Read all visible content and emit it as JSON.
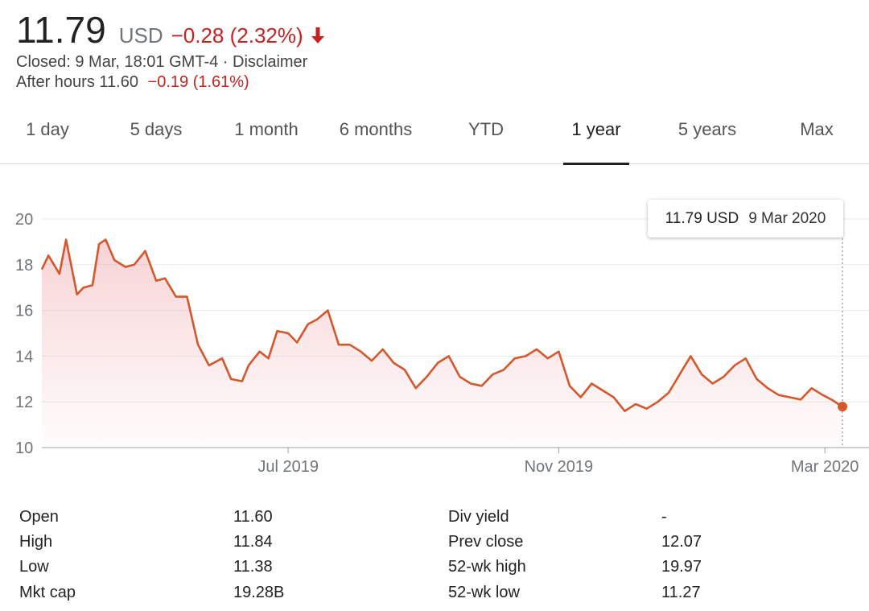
{
  "quote": {
    "price": "11.79",
    "currency": "USD",
    "change": "−0.28 (2.32%)",
    "change_color": "#c5221f",
    "closed_text": "Closed: 9 Mar, 18:01 GMT-4 · ",
    "disclaimer": "Disclaimer",
    "after_hours_text": "After hours 11.60",
    "after_hours_change": "−0.19 (1.61%)"
  },
  "tabs": [
    {
      "label": "1 day",
      "active": false
    },
    {
      "label": "5 days",
      "active": false
    },
    {
      "label": "1 month",
      "active": false
    },
    {
      "label": "6 months",
      "active": false
    },
    {
      "label": "YTD",
      "active": false
    },
    {
      "label": "1 year",
      "active": true
    },
    {
      "label": "5 years",
      "active": false
    },
    {
      "label": "Max",
      "active": false
    }
  ],
  "tooltip": {
    "value": "11.79 USD",
    "date": "9 Mar 2020"
  },
  "stats": {
    "left": [
      {
        "label": "Open",
        "value": "11.60"
      },
      {
        "label": "High",
        "value": "11.84"
      },
      {
        "label": "Low",
        "value": "11.38"
      },
      {
        "label": "Mkt cap",
        "value": "19.28B"
      }
    ],
    "right": [
      {
        "label": "Div yield",
        "value": "-"
      },
      {
        "label": "Prev close",
        "value": "12.07"
      },
      {
        "label": "52-wk high",
        "value": "19.97"
      },
      {
        "label": "52-wk low",
        "value": "11.27"
      }
    ]
  },
  "chart_data": {
    "type": "area",
    "line_color": "#d4582c",
    "ylim": [
      10,
      20
    ],
    "yticks": [
      "10",
      "12",
      "14",
      "16",
      "18",
      "20"
    ],
    "xticks": [
      {
        "label": "Jul 2019",
        "date": "2019-07-01"
      },
      {
        "label": "Nov 2019",
        "date": "2019-11-01"
      },
      {
        "label": "Mar 2020",
        "date": "2020-03-01"
      }
    ],
    "grid": true,
    "series": [
      {
        "x": [
          "2019-03-11",
          "2019-03-14",
          "2019-03-19",
          "2019-03-22",
          "2019-03-27",
          "2019-03-30",
          "2019-04-03",
          "2019-04-06",
          "2019-04-09",
          "2019-04-13",
          "2019-04-18",
          "2019-04-22",
          "2019-04-27",
          "2019-05-02",
          "2019-05-06",
          "2019-05-11",
          "2019-05-16",
          "2019-05-21",
          "2019-05-26",
          "2019-06-01",
          "2019-06-05",
          "2019-06-10",
          "2019-06-13",
          "2019-06-18",
          "2019-06-22",
          "2019-06-26",
          "2019-07-01",
          "2019-07-05",
          "2019-07-10",
          "2019-07-14",
          "2019-07-19",
          "2019-07-24",
          "2019-07-29",
          "2019-08-03",
          "2019-08-08",
          "2019-08-13",
          "2019-08-18",
          "2019-08-23",
          "2019-08-28",
          "2019-09-02",
          "2019-09-07",
          "2019-09-12",
          "2019-09-17",
          "2019-09-22",
          "2019-09-27",
          "2019-10-02",
          "2019-10-07",
          "2019-10-12",
          "2019-10-17",
          "2019-10-22",
          "2019-10-27",
          "2019-11-01",
          "2019-11-06",
          "2019-11-11",
          "2019-11-16",
          "2019-11-21",
          "2019-11-26",
          "2019-12-01",
          "2019-12-06",
          "2019-12-11",
          "2019-12-16",
          "2019-12-21",
          "2019-12-26",
          "2019-12-31",
          "2020-01-05",
          "2020-01-10",
          "2020-01-15",
          "2020-01-20",
          "2020-01-25",
          "2020-01-30",
          "2020-02-04",
          "2020-02-09",
          "2020-02-14",
          "2020-02-19",
          "2020-02-24",
          "2020-02-29",
          "2020-03-04",
          "2020-03-09"
        ],
        "values": [
          17.8,
          18.4,
          17.6,
          19.1,
          16.7,
          17.0,
          17.1,
          18.9,
          19.1,
          18.2,
          17.9,
          18.0,
          18.6,
          17.3,
          17.4,
          16.6,
          16.6,
          14.5,
          13.6,
          13.9,
          13.0,
          12.9,
          13.6,
          14.2,
          13.9,
          15.1,
          15.0,
          14.6,
          15.4,
          15.6,
          16.0,
          14.5,
          14.5,
          14.2,
          13.8,
          14.3,
          13.7,
          13.4,
          12.6,
          13.1,
          13.7,
          14.0,
          13.1,
          12.8,
          12.7,
          13.2,
          13.4,
          13.9,
          14.0,
          14.3,
          13.9,
          14.2,
          12.7,
          12.2,
          12.8,
          12.5,
          12.2,
          11.6,
          11.9,
          11.7,
          12.0,
          12.4,
          13.2,
          14.0,
          13.2,
          12.8,
          13.1,
          13.6,
          13.9,
          13.0,
          12.6,
          12.3,
          12.2,
          12.1,
          12.6,
          12.3,
          12.1,
          11.79
        ]
      }
    ]
  }
}
